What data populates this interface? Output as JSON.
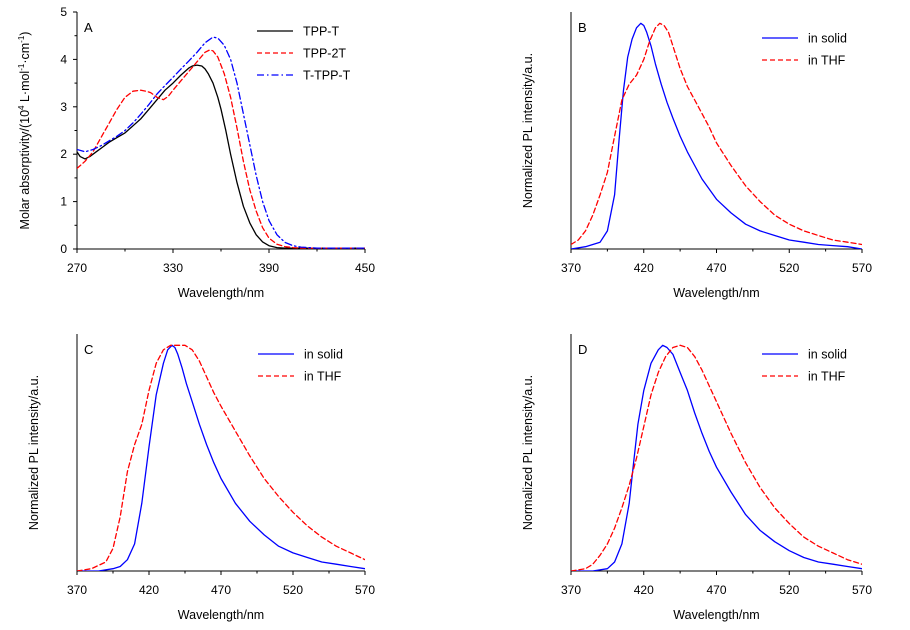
{
  "chart_data": [
    {
      "panel": "A",
      "type": "line",
      "xlabel": "Wavelength/nm",
      "ylabel": "Molar absorptivity/(10",
      "ylabel_sup": "4",
      "ylabel_rest": " L·mol",
      "ylabel_sup2": "-1",
      "ylabel_rest2": "·cm",
      "ylabel_sup3": "-1",
      "ylabel_end": ")",
      "xlim": [
        270,
        450
      ],
      "ylim": [
        0,
        5
      ],
      "xticks": [
        270,
        330,
        390,
        450
      ],
      "yticks": [
        0,
        1,
        2,
        3,
        4,
        5
      ],
      "legend_position": "top-right",
      "series": [
        {
          "name": "TPP-T",
          "color": "#000000",
          "dash": "solid",
          "x": [
            270,
            272,
            275,
            278,
            282,
            286,
            290,
            295,
            300,
            305,
            310,
            315,
            320,
            325,
            330,
            335,
            340,
            342,
            345,
            348,
            350,
            352,
            355,
            358,
            360,
            363,
            366,
            370,
            374,
            378,
            382,
            386,
            390,
            395,
            400,
            405,
            410,
            420,
            430,
            440,
            450
          ],
          "y": [
            2.05,
            1.95,
            1.9,
            1.95,
            2.05,
            2.15,
            2.25,
            2.35,
            2.45,
            2.6,
            2.75,
            2.95,
            3.15,
            3.35,
            3.5,
            3.67,
            3.82,
            3.86,
            3.88,
            3.86,
            3.8,
            3.7,
            3.5,
            3.2,
            2.95,
            2.5,
            2.0,
            1.4,
            0.9,
            0.55,
            0.3,
            0.15,
            0.07,
            0.03,
            0.02,
            0.02,
            0.02,
            0.02,
            0.02,
            0.02,
            0.02
          ]
        },
        {
          "name": "TPP-2T",
          "color": "#ff0000",
          "dash": "dash",
          "x": [
            270,
            275,
            280,
            285,
            290,
            295,
            300,
            305,
            310,
            313,
            316,
            320,
            324,
            327,
            330,
            335,
            340,
            345,
            350,
            353,
            355,
            358,
            362,
            366,
            370,
            374,
            378,
            382,
            386,
            390,
            395,
            400,
            405,
            410,
            420,
            430,
            440,
            450
          ],
          "y": [
            1.7,
            1.85,
            2.05,
            2.35,
            2.65,
            2.95,
            3.2,
            3.33,
            3.35,
            3.33,
            3.3,
            3.2,
            3.15,
            3.22,
            3.35,
            3.55,
            3.75,
            3.95,
            4.15,
            4.2,
            4.18,
            4.05,
            3.7,
            3.2,
            2.55,
            1.85,
            1.25,
            0.8,
            0.45,
            0.23,
            0.1,
            0.05,
            0.03,
            0.02,
            0.02,
            0.02,
            0.02,
            0.02
          ]
        },
        {
          "name": "T-TPP-T",
          "color": "#0000ff",
          "dash": "dashdot",
          "x": [
            270,
            275,
            280,
            285,
            290,
            295,
            300,
            305,
            310,
            315,
            320,
            325,
            330,
            335,
            340,
            345,
            350,
            355,
            358,
            362,
            366,
            370,
            374,
            378,
            382,
            386,
            390,
            395,
            400,
            405,
            410,
            415,
            420,
            430,
            440,
            450
          ],
          "y": [
            2.1,
            2.05,
            2.1,
            2.18,
            2.28,
            2.38,
            2.5,
            2.66,
            2.85,
            3.05,
            3.27,
            3.45,
            3.62,
            3.8,
            3.97,
            4.15,
            4.35,
            4.47,
            4.45,
            4.3,
            4.0,
            3.5,
            2.85,
            2.2,
            1.55,
            1.0,
            0.6,
            0.3,
            0.14,
            0.07,
            0.04,
            0.03,
            0.02,
            0.02,
            0.02,
            0.02
          ]
        }
      ]
    },
    {
      "panel": "B",
      "type": "line",
      "xlabel": "Wavelength/nm",
      "ylabel": "Normalized PL intensity/a.u.",
      "xlim": [
        370,
        570
      ],
      "ylim": [
        0,
        1.05
      ],
      "xticks": [
        370,
        420,
        470,
        520,
        570
      ],
      "legend_position": "top-right",
      "series": [
        {
          "name": "in solid",
          "color": "#0000ff",
          "dash": "solid",
          "x": [
            370,
            380,
            390,
            395,
            400,
            403,
            406,
            409,
            412,
            415,
            418,
            420,
            422,
            425,
            428,
            432,
            436,
            440,
            445,
            450,
            455,
            460,
            470,
            480,
            490,
            500,
            510,
            520,
            530,
            540,
            550,
            560,
            570
          ],
          "y": [
            0.0,
            0.01,
            0.03,
            0.08,
            0.24,
            0.48,
            0.7,
            0.85,
            0.93,
            0.98,
            1.0,
            0.99,
            0.96,
            0.9,
            0.82,
            0.73,
            0.65,
            0.58,
            0.5,
            0.43,
            0.37,
            0.31,
            0.22,
            0.16,
            0.11,
            0.08,
            0.06,
            0.04,
            0.03,
            0.02,
            0.015,
            0.01,
            0.0
          ]
        },
        {
          "name": "in THF",
          "color": "#ff0000",
          "dash": "dash",
          "x": [
            370,
            375,
            380,
            385,
            390,
            395,
            400,
            405,
            410,
            415,
            420,
            424,
            428,
            431,
            434,
            437,
            440,
            445,
            450,
            455,
            460,
            465,
            470,
            480,
            490,
            500,
            510,
            520,
            530,
            540,
            550,
            560,
            570
          ],
          "y": [
            0.02,
            0.04,
            0.08,
            0.15,
            0.24,
            0.34,
            0.5,
            0.66,
            0.73,
            0.77,
            0.84,
            0.92,
            0.98,
            1.0,
            0.99,
            0.96,
            0.9,
            0.8,
            0.72,
            0.66,
            0.6,
            0.54,
            0.47,
            0.37,
            0.28,
            0.21,
            0.15,
            0.11,
            0.08,
            0.06,
            0.04,
            0.03,
            0.02
          ]
        }
      ]
    },
    {
      "panel": "C",
      "type": "line",
      "xlabel": "Wavelength/nm",
      "ylabel": "Normalized PL intensity/a.u.",
      "xlim": [
        370,
        570
      ],
      "ylim": [
        0,
        1.05
      ],
      "xticks": [
        370,
        420,
        470,
        520,
        570
      ],
      "legend_position": "top-right",
      "series": [
        {
          "name": "in solid",
          "color": "#0000ff",
          "dash": "solid",
          "x": [
            370,
            385,
            395,
            400,
            405,
            410,
            415,
            420,
            425,
            430,
            433,
            436,
            438,
            440,
            443,
            446,
            450,
            455,
            460,
            465,
            470,
            480,
            490,
            500,
            510,
            520,
            530,
            540,
            550,
            560,
            570
          ],
          "y": [
            0.0,
            0.0,
            0.01,
            0.02,
            0.05,
            0.12,
            0.3,
            0.55,
            0.78,
            0.92,
            0.98,
            1.0,
            0.99,
            0.96,
            0.9,
            0.83,
            0.75,
            0.65,
            0.56,
            0.48,
            0.41,
            0.3,
            0.22,
            0.16,
            0.11,
            0.08,
            0.06,
            0.04,
            0.03,
            0.02,
            0.01
          ]
        },
        {
          "name": "in THF",
          "color": "#ff0000",
          "dash": "dash",
          "x": [
            370,
            380,
            390,
            395,
            400,
            405,
            410,
            415,
            420,
            425,
            430,
            435,
            440,
            445,
            450,
            455,
            460,
            465,
            470,
            480,
            490,
            500,
            510,
            520,
            530,
            540,
            550,
            560,
            570
          ],
          "y": [
            0.0,
            0.01,
            0.04,
            0.1,
            0.24,
            0.44,
            0.56,
            0.65,
            0.8,
            0.92,
            0.98,
            1.0,
            1.0,
            1.0,
            0.98,
            0.93,
            0.86,
            0.79,
            0.73,
            0.62,
            0.51,
            0.41,
            0.33,
            0.26,
            0.2,
            0.15,
            0.11,
            0.08,
            0.05
          ]
        }
      ]
    },
    {
      "panel": "D",
      "type": "line",
      "xlabel": "Wavelength/nm",
      "ylabel": "Normalized PL intensity/a.u.",
      "xlim": [
        370,
        570
      ],
      "ylim": [
        0,
        1.05
      ],
      "xticks": [
        370,
        420,
        470,
        520,
        570
      ],
      "legend_position": "top-right",
      "series": [
        {
          "name": "in solid",
          "color": "#0000ff",
          "dash": "solid",
          "x": [
            370,
            385,
            395,
            400,
            405,
            410,
            413,
            416,
            420,
            425,
            430,
            433,
            436,
            440,
            445,
            450,
            455,
            460,
            465,
            470,
            480,
            490,
            500,
            510,
            520,
            530,
            540,
            550,
            560,
            570
          ],
          "y": [
            0.0,
            0.0,
            0.01,
            0.04,
            0.12,
            0.3,
            0.48,
            0.65,
            0.8,
            0.92,
            0.98,
            1.0,
            0.99,
            0.96,
            0.88,
            0.8,
            0.7,
            0.61,
            0.53,
            0.46,
            0.35,
            0.25,
            0.18,
            0.13,
            0.09,
            0.06,
            0.04,
            0.03,
            0.02,
            0.01
          ]
        },
        {
          "name": "in THF",
          "color": "#ff0000",
          "dash": "dash",
          "x": [
            370,
            380,
            385,
            390,
            395,
            400,
            405,
            410,
            415,
            420,
            425,
            430,
            435,
            440,
            445,
            450,
            455,
            460,
            465,
            470,
            480,
            490,
            500,
            510,
            520,
            530,
            540,
            550,
            560,
            570
          ],
          "y": [
            0.0,
            0.01,
            0.03,
            0.07,
            0.12,
            0.19,
            0.28,
            0.38,
            0.5,
            0.64,
            0.78,
            0.88,
            0.95,
            0.99,
            1.0,
            0.99,
            0.95,
            0.89,
            0.82,
            0.75,
            0.61,
            0.48,
            0.37,
            0.28,
            0.21,
            0.15,
            0.11,
            0.08,
            0.05,
            0.03
          ]
        }
      ]
    }
  ]
}
